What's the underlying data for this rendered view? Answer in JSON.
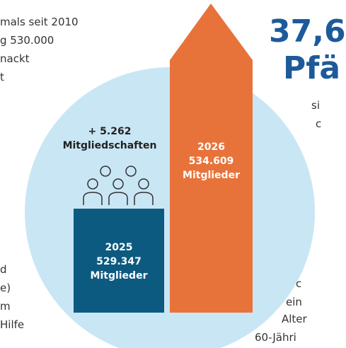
{
  "headline": [
    "37,6",
    "Pfä"
  ],
  "left_text_top": [
    "mals seit 2010",
    "g 530.000",
    "nackt",
    "t"
  ],
  "left_text_bottom": [
    "d",
    "e)",
    "m",
    "Hilfe"
  ],
  "right_text_top": [
    "si",
    "c"
  ],
  "right_text_bottom": [
    "c",
    "ein",
    "Alter",
    "60-Jähri"
  ],
  "growth": {
    "value": "+ 5.262",
    "label": "Mitgliedschaften"
  },
  "year_2025": {
    "year": "2025",
    "count": "529.347",
    "unit": "Mitglieder"
  },
  "year_2026": {
    "year": "2026",
    "count": "534.609",
    "unit": "Mitglieder"
  }
}
